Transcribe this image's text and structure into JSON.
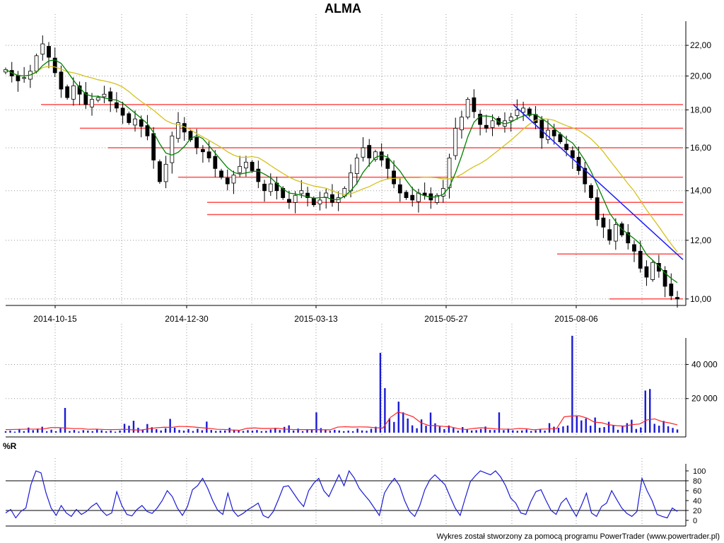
{
  "title": "ALMA",
  "footer": "Wykres został stworzony za pomocą programu PowerTrader (www.powertrader.pl)",
  "colors": {
    "candle_up": "#ffffff",
    "candle_down": "#000000",
    "sma_short": "#008000",
    "sma_long": "#d4c21c",
    "support_lines": "#ff4d4d",
    "trend_line": "#1a1aff",
    "volume_bars": "#1a1ad6",
    "volume_avg": "#ff2020",
    "williams_r": "#1a1ad6",
    "grid": "#999999"
  },
  "chart_data": [
    {
      "type": "candlestick",
      "name": "price",
      "title": "ALMA",
      "x_tick_labels": [
        "2014-10-15",
        "2014-12-30",
        "2015-03-13",
        "2015-05-27",
        "2015-08-06"
      ],
      "y_tick_labels": [
        "10,00",
        "12,00",
        "14,00",
        "16,00",
        "18,00",
        "20,00",
        "22,00"
      ],
      "ylim": [
        9.8,
        22.9
      ],
      "log_scale": true,
      "grid": true,
      "close_series": [
        20.4,
        20.0,
        19.7,
        19.9,
        20.3,
        21.3,
        22.1,
        21.2,
        20.2,
        19.2,
        18.7,
        19.4,
        18.9,
        18.3,
        18.6,
        18.7,
        18.9,
        18.5,
        18.1,
        17.7,
        17.3,
        17.5,
        17.1,
        16.6,
        15.4,
        14.4,
        15.2,
        16.6,
        17.3,
        16.8,
        16.4,
        16.0,
        15.8,
        15.5,
        15.0,
        14.6,
        14.3,
        14.7,
        15.1,
        15.3,
        14.9,
        14.4,
        14.0,
        14.3,
        14.0,
        13.7,
        13.5,
        13.8,
        14.0,
        13.7,
        13.4,
        13.6,
        13.9,
        13.5,
        13.7,
        14.1,
        14.8,
        15.5,
        16.0,
        15.5,
        15.8,
        15.4,
        15.0,
        14.3,
        13.9,
        13.7,
        13.6,
        13.9,
        13.8,
        13.6,
        13.8,
        14.1,
        15.5,
        17.0,
        17.6,
        18.6,
        17.9,
        17.2,
        17.0,
        17.4,
        17.2,
        17.4,
        17.6,
        18.0,
        18.1,
        17.7,
        17.3,
        16.5,
        16.9,
        16.6,
        16.3,
        15.9,
        15.5,
        14.9,
        14.3,
        13.7,
        12.8,
        12.5,
        12.0,
        12.6,
        12.2,
        11.9,
        11.6,
        11.0,
        10.7,
        11.2,
        10.9,
        10.4,
        10.1,
        10.0
      ],
      "horizontal_levels": [
        {
          "value": 18.3,
          "from": "2014-09-29",
          "to": "end"
        },
        {
          "value": 17.0,
          "from": "2014-10-22",
          "to": "end"
        },
        {
          "value": 16.0,
          "from": "2014-11-06",
          "to": "end"
        },
        {
          "value": 14.6,
          "from": "2014-12-17",
          "to": "end"
        },
        {
          "value": 13.5,
          "from": "2015-01-08",
          "to": "end"
        },
        {
          "value": 13.0,
          "from": "2015-01-08",
          "to": "end"
        },
        {
          "value": 11.5,
          "from": "2015-08-04",
          "to": "end"
        },
        {
          "value": 10.0,
          "from": "2015-08-27",
          "to": "end"
        }
      ],
      "trend_line": {
        "from": [
          18.3,
          "2015-06-19"
        ],
        "to": [
          11.3,
          "end"
        ]
      }
    },
    {
      "type": "bar",
      "name": "volume",
      "y_tick_labels": [
        "20 000",
        "40 000"
      ],
      "ylim": [
        0,
        58000
      ],
      "values": [
        900,
        1200,
        600,
        2200,
        900,
        3000,
        1500,
        2400,
        3500,
        800,
        1800,
        900,
        2600,
        14500,
        1000,
        1600,
        700,
        1500,
        1200,
        900,
        1900,
        1400,
        800,
        1200,
        600,
        1300,
        5200,
        4100,
        7000,
        2900,
        1600,
        5100,
        3200,
        2100,
        1300,
        2600,
        8100,
        2900,
        1600,
        1200,
        2100,
        1000,
        2300,
        1400,
        6500,
        1600,
        1000,
        1200,
        1300,
        2900,
        1400,
        1200,
        1000,
        1500,
        1200,
        1600,
        900,
        1100,
        1900,
        2800,
        1600,
        3400,
        4300,
        1300,
        2400,
        900,
        1800,
        2100,
        11900,
        2700,
        1900,
        1100,
        1700,
        1300,
        900,
        1200,
        900,
        2400,
        1300,
        1100,
        2300,
        3500,
        46800,
        26100,
        8400,
        6300,
        18200,
        11900,
        8300,
        4300,
        2600,
        7800,
        4100,
        11800,
        5500,
        3600,
        2100,
        4200,
        2800,
        1200,
        3300,
        1900,
        1300,
        1500,
        2200,
        3600,
        1600,
        1600,
        11900,
        1500,
        2400,
        1400,
        1100,
        1300,
        1900,
        1000,
        1400,
        2300,
        1200,
        5600,
        3500,
        2900,
        3700,
        4200,
        56800,
        9700,
        7200,
        8300,
        4100,
        8900,
        2900,
        3300,
        6400,
        4300,
        1700,
        3800,
        5600,
        7600,
        2200,
        3100,
        24700,
        25600,
        5200,
        4100,
        6900,
        3800,
        2800,
        1900
      ],
      "avg_series": [
        1800,
        1900,
        2000,
        2100,
        2100,
        2200,
        3000,
        3000,
        2700,
        2400,
        2400,
        2000,
        2100,
        1900,
        1800,
        1900,
        2000,
        1600,
        1600,
        2300,
        2900,
        3200,
        3100,
        3700,
        3600,
        3300,
        2900,
        2500,
        2000,
        1900,
        1600,
        1400,
        2600,
        2800,
        2500,
        2500,
        2600,
        2100,
        1900,
        1800,
        1800,
        1800,
        1700,
        1700,
        3300,
        3500,
        3300,
        3400,
        3300,
        2900,
        2800,
        9000,
        12100,
        10900,
        9300,
        5900,
        4300,
        4100,
        3700,
        3400,
        2300,
        1900,
        2500,
        2900,
        2600,
        2200,
        2100,
        2000,
        2500,
        2300,
        1700,
        2100,
        2200,
        2400,
        9300,
        9800,
        9900,
        8600,
        6200,
        5800,
        4600,
        4100,
        3900,
        4700,
        5100,
        7500,
        8100,
        6500,
        5700,
        4600
      ]
    },
    {
      "type": "line",
      "name": "williams_r",
      "label": "%R",
      "y_tick_labels": [
        "0",
        "20",
        "40",
        "60",
        "80",
        "100"
      ],
      "ylim": [
        0,
        100
      ],
      "reference_lines": [
        20,
        80
      ],
      "values": [
        15,
        22,
        5,
        18,
        25,
        72,
        100,
        96,
        55,
        25,
        10,
        30,
        15,
        8,
        22,
        12,
        18,
        28,
        35,
        20,
        10,
        15,
        58,
        30,
        12,
        9,
        22,
        30,
        18,
        14,
        25,
        40,
        60,
        48,
        25,
        10,
        28,
        62,
        70,
        85,
        65,
        40,
        20,
        12,
        55,
        20,
        8,
        14,
        22,
        28,
        35,
        10,
        5,
        18,
        42,
        68,
        70,
        55,
        40,
        28,
        60,
        75,
        85,
        60,
        48,
        70,
        92,
        70,
        100,
        86,
        65,
        52,
        40,
        25,
        10,
        55,
        72,
        85,
        70,
        40,
        18,
        8,
        30,
        62,
        82,
        92,
        82,
        72,
        48,
        25,
        10,
        45,
        78,
        90,
        100,
        96,
        92,
        100,
        88,
        70,
        45,
        35,
        15,
        12,
        38,
        58,
        62,
        40,
        20,
        12,
        35,
        45,
        25,
        8,
        30,
        55,
        15,
        8,
        28,
        35,
        60,
        42,
        25,
        14,
        8,
        18,
        85,
        60,
        40,
        12,
        8,
        5,
        25,
        18
      ]
    }
  ]
}
